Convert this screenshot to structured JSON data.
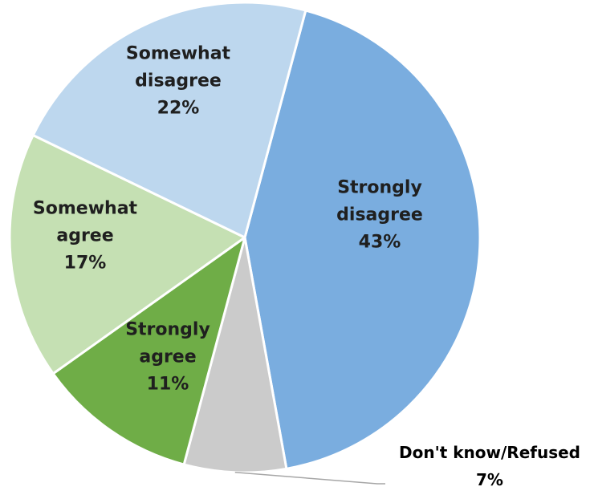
{
  "chart_data": {
    "type": "pie",
    "title": "",
    "slices": [
      {
        "label": "Strongly disagree",
        "label_lines": [
          "Strongly",
          "disagree"
        ],
        "value": 43,
        "value_text": "43%",
        "color": "#7aaddf",
        "text_color": "#1f1f1f"
      },
      {
        "label": "Don't know/Refused",
        "label_lines": [
          "Don't know/Refused"
        ],
        "value": 7,
        "value_text": "7%",
        "color": "#cbcbcb",
        "text_color": "#000000"
      },
      {
        "label": "Strongly agree",
        "label_lines": [
          "Strongly",
          "agree"
        ],
        "value": 11,
        "value_text": "11%",
        "color": "#6fad47",
        "text_color": "#1f1f1f"
      },
      {
        "label": "Somewhat agree",
        "label_lines": [
          "Somewhat",
          "agree"
        ],
        "value": 17,
        "value_text": "17%",
        "color": "#c5e0b3",
        "text_color": "#1f1f1f"
      },
      {
        "label": "Somewhat disagree",
        "label_lines": [
          "Somewhat",
          "disagree"
        ],
        "value": 22,
        "value_text": "22%",
        "color": "#bdd7ee",
        "text_color": "#1f1f1f"
      }
    ],
    "legend": "none",
    "start": "top",
    "direction": "clockwise"
  }
}
